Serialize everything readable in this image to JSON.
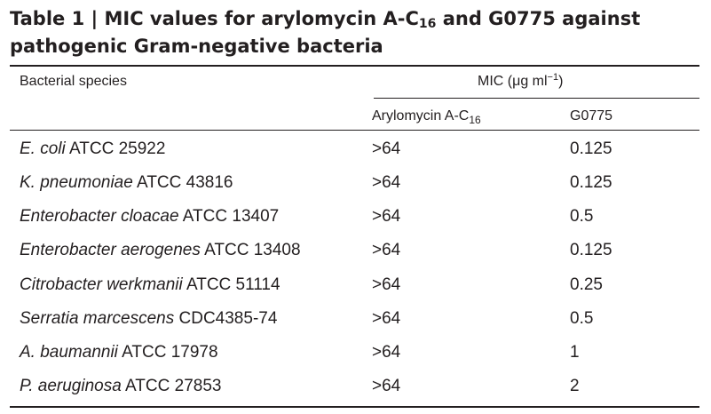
{
  "table": {
    "title": {
      "label": "Table 1",
      "separator": "|",
      "text_a": "MIC values for arylomycin A-C",
      "subscript": "16",
      "text_b": " and G0775 against pathogenic Gram-negative bacteria"
    },
    "headers": {
      "species": "Bacterial species",
      "mic_prefix": "MIC (μg ml",
      "mic_sup": "−1",
      "mic_suffix": ")",
      "arylomycin_prefix": "Arylomycin A-C",
      "arylomycin_sub": "16",
      "g0775": "G0775"
    },
    "rows": [
      {
        "species_italic": "E. coli",
        "strain": " ATCC 25922",
        "arylomycin": ">64",
        "g0775": "0.125"
      },
      {
        "species_italic": "K. pneumoniae",
        "strain": " ATCC 43816",
        "arylomycin": ">64",
        "g0775": "0.125"
      },
      {
        "species_italic": "Enterobacter cloacae",
        "strain": " ATCC 13407",
        "arylomycin": ">64",
        "g0775": "0.5"
      },
      {
        "species_italic": "Enterobacter aerogenes",
        "strain": " ATCC 13408",
        "arylomycin": ">64",
        "g0775": "0.125"
      },
      {
        "species_italic": "Citrobacter werkmanii",
        "strain": " ATCC 51114",
        "arylomycin": ">64",
        "g0775": "0.25"
      },
      {
        "species_italic": "Serratia marcescens",
        "strain": " CDC4385-74",
        "arylomycin": ">64",
        "g0775": "0.5"
      },
      {
        "species_italic": "A. baumannii",
        "strain": " ATCC 17978",
        "arylomycin": ">64",
        "g0775": "1"
      },
      {
        "species_italic": "P. aeruginosa",
        "strain": " ATCC 27853",
        "arylomycin": ">64",
        "g0775": "2"
      }
    ]
  }
}
